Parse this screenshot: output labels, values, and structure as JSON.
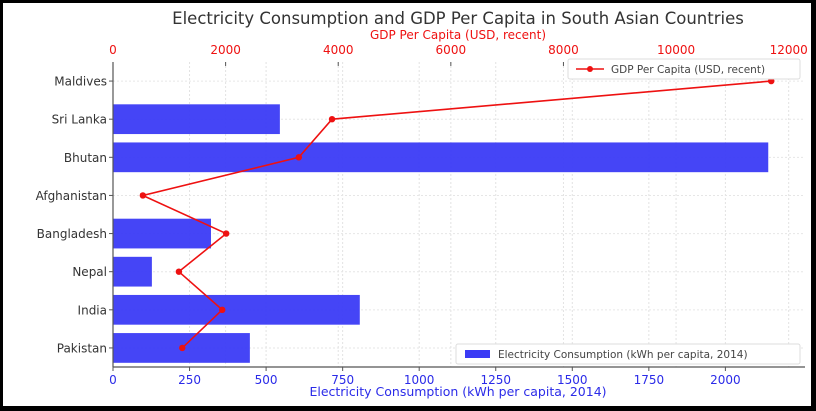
{
  "chart_data": {
    "type": "bar",
    "title": "Electricity Consumption and GDP Per Capita in South Asian Countries",
    "categories": [
      "Maldives",
      "Sri Lanka",
      "Bhutan",
      "Afghanistan",
      "Bangladesh",
      "Nepal",
      "India",
      "Pakistan"
    ],
    "series": [
      {
        "name": "Electricity Consumption (kWh per capita, 2014)",
        "type": "barh",
        "axis": "bottom",
        "color": "#3b3bf5",
        "values": [
          0,
          545,
          2140,
          0,
          320,
          127,
          806,
          447
        ]
      },
      {
        "name": "GDP Per Capita (USD, recent)",
        "type": "line",
        "axis": "top",
        "color": "#ee1111",
        "values": [
          11690,
          3890,
          3300,
          530,
          2010,
          1170,
          1940,
          1230
        ]
      }
    ],
    "xlabel": "Electricity Consumption (kWh per capita, 2014)",
    "xlim": [
      0,
      2260
    ],
    "xticks": [
      "0",
      "250",
      "500",
      "750",
      "1000",
      "1250",
      "1500",
      "1750",
      "2000"
    ],
    "x2label": "GDP Per Capita (USD, recent)",
    "x2lim": [
      0,
      12290
    ],
    "x2ticks": [
      "0",
      "2000",
      "4000",
      "6000",
      "8000",
      "10000",
      "12000"
    ],
    "grid": true,
    "legend": [
      {
        "label": "GDP Per Capita (USD, recent)",
        "placement": "top-right"
      },
      {
        "label": "Electricity Consumption (kWh per capita, 2014)",
        "placement": "bottom-right"
      }
    ]
  }
}
